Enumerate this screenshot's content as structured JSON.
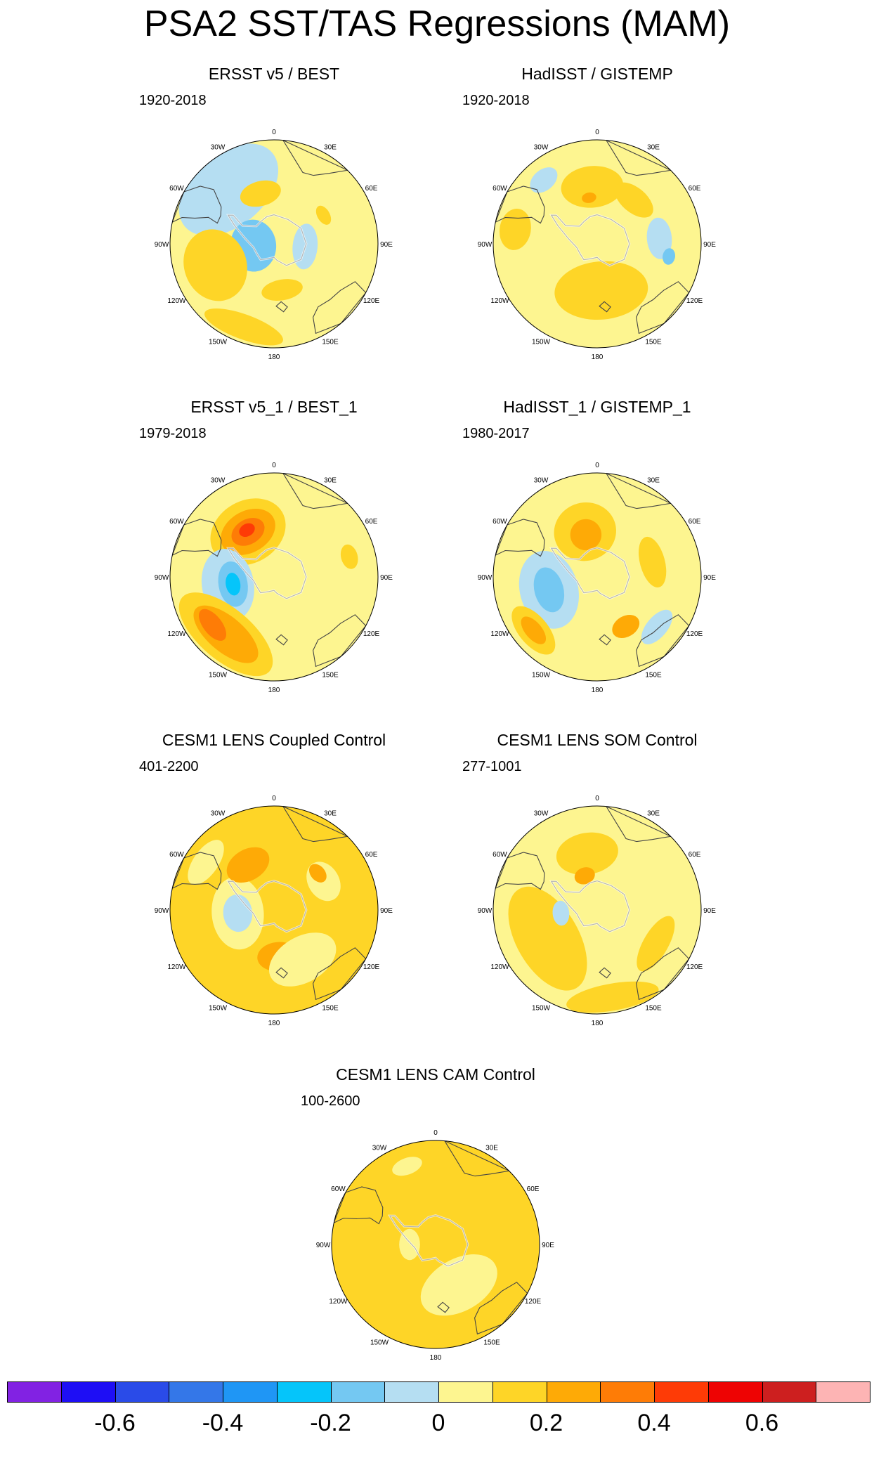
{
  "title": "PSA2 SST/TAS Regressions (MAM)",
  "longitude_labels": [
    "0",
    "30E",
    "60E",
    "90E",
    "120E",
    "150E",
    "180",
    "150W",
    "120W",
    "90W",
    "60W",
    "30W"
  ],
  "panels": [
    {
      "title": "ERSST v5 / BEST",
      "period": "1920-2018",
      "background": 0.0,
      "anomalies": [
        {
          "lon": -40,
          "r": 0.68,
          "rx": 0.55,
          "ry": 0.35,
          "value": -0.1
        },
        {
          "lon": -15,
          "r": 0.5,
          "rx": 0.2,
          "ry": 0.12,
          "value": 0.1
        },
        {
          "lon": -95,
          "r": 0.2,
          "rx": 0.25,
          "ry": 0.22,
          "value": -0.2
        },
        {
          "lon": -110,
          "r": 0.6,
          "rx": 0.35,
          "ry": 0.3,
          "value": 0.1
        },
        {
          "lon": -160,
          "r": 0.85,
          "rx": 0.4,
          "ry": 0.12,
          "value": 0.1
        },
        {
          "lon": 95,
          "r": 0.3,
          "rx": 0.22,
          "ry": 0.12,
          "value": -0.1
        },
        {
          "lon": 170,
          "r": 0.45,
          "rx": 0.2,
          "ry": 0.1,
          "value": 0.1
        },
        {
          "lon": 60,
          "r": 0.55,
          "rx": 0.1,
          "ry": 0.06,
          "value": 0.1
        }
      ]
    },
    {
      "title": "HadISST / GISTEMP",
      "period": "1920-2018",
      "background": 0.0,
      "anomalies": [
        {
          "lon": -5,
          "r": 0.55,
          "rx": 0.3,
          "ry": 0.2,
          "value": 0.1
        },
        {
          "lon": 175,
          "r": 0.45,
          "rx": 0.45,
          "ry": 0.28,
          "value": 0.1
        },
        {
          "lon": -80,
          "r": 0.8,
          "rx": 0.2,
          "ry": 0.15,
          "value": 0.1
        },
        {
          "lon": 85,
          "r": 0.6,
          "rx": 0.2,
          "ry": 0.12,
          "value": -0.1
        },
        {
          "lon": 100,
          "r": 0.7,
          "rx": 0.08,
          "ry": 0.06,
          "value": -0.2
        },
        {
          "lon": 40,
          "r": 0.55,
          "rx": 0.22,
          "ry": 0.12,
          "value": 0.1
        },
        {
          "lon": -40,
          "r": 0.8,
          "rx": 0.15,
          "ry": 0.1,
          "value": -0.1
        },
        {
          "lon": -10,
          "r": 0.45,
          "rx": 0.07,
          "ry": 0.05,
          "value": 0.2
        }
      ]
    },
    {
      "title": "ERSST v5_1 / BEST_1",
      "period": "1979-2018",
      "background": 0.0,
      "anomalies": [
        {
          "lon": -30,
          "r": 0.5,
          "rx": 0.38,
          "ry": 0.3,
          "value": 0.1
        },
        {
          "lon": -30,
          "r": 0.5,
          "rx": 0.28,
          "ry": 0.2,
          "value": 0.2
        },
        {
          "lon": -30,
          "r": 0.5,
          "rx": 0.17,
          "ry": 0.12,
          "value": 0.3
        },
        {
          "lon": -30,
          "r": 0.52,
          "rx": 0.08,
          "ry": 0.06,
          "value": 0.4
        },
        {
          "lon": -100,
          "r": 0.45,
          "rx": 0.35,
          "ry": 0.25,
          "value": -0.1
        },
        {
          "lon": -100,
          "r": 0.4,
          "rx": 0.22,
          "ry": 0.14,
          "value": -0.2
        },
        {
          "lon": -100,
          "r": 0.4,
          "rx": 0.11,
          "ry": 0.07,
          "value": -0.3
        },
        {
          "lon": -140,
          "r": 0.72,
          "rx": 0.55,
          "ry": 0.25,
          "value": 0.1
        },
        {
          "lon": -140,
          "r": 0.72,
          "rx": 0.38,
          "ry": 0.17,
          "value": 0.2
        },
        {
          "lon": -128,
          "r": 0.75,
          "rx": 0.18,
          "ry": 0.09,
          "value": 0.3
        },
        {
          "lon": 75,
          "r": 0.75,
          "rx": 0.12,
          "ry": 0.08,
          "value": 0.1
        }
      ]
    },
    {
      "title": "HadISST_1 / GISTEMP_1",
      "period": "1980-2017",
      "background": 0.0,
      "anomalies": [
        {
          "lon": -15,
          "r": 0.45,
          "rx": 0.3,
          "ry": 0.28,
          "value": 0.1
        },
        {
          "lon": -15,
          "r": 0.42,
          "rx": 0.15,
          "ry": 0.15,
          "value": 0.2
        },
        {
          "lon": -105,
          "r": 0.48,
          "rx": 0.38,
          "ry": 0.28,
          "value": -0.1
        },
        {
          "lon": -105,
          "r": 0.48,
          "rx": 0.22,
          "ry": 0.14,
          "value": -0.2
        },
        {
          "lon": -130,
          "r": 0.8,
          "rx": 0.28,
          "ry": 0.14,
          "value": 0.1
        },
        {
          "lon": -130,
          "r": 0.8,
          "rx": 0.16,
          "ry": 0.08,
          "value": 0.2
        },
        {
          "lon": 75,
          "r": 0.55,
          "rx": 0.25,
          "ry": 0.12,
          "value": 0.1
        },
        {
          "lon": 150,
          "r": 0.55,
          "rx": 0.14,
          "ry": 0.1,
          "value": 0.2
        },
        {
          "lon": 130,
          "r": 0.75,
          "rx": 0.2,
          "ry": 0.1,
          "value": -0.1
        }
      ]
    },
    {
      "title": "CESM1 LENS Coupled Control",
      "period": "401-2200",
      "background": 0.1,
      "anomalies": [
        {
          "lon": -95,
          "r": 0.35,
          "rx": 0.35,
          "ry": 0.25,
          "value": 0.0
        },
        {
          "lon": -95,
          "r": 0.35,
          "rx": 0.18,
          "ry": 0.14,
          "value": -0.1
        },
        {
          "lon": -30,
          "r": 0.5,
          "rx": 0.22,
          "ry": 0.15,
          "value": 0.2
        },
        {
          "lon": 175,
          "r": 0.45,
          "rx": 0.2,
          "ry": 0.14,
          "value": 0.2
        },
        {
          "lon": 150,
          "r": 0.55,
          "rx": 0.35,
          "ry": 0.22,
          "value": 0.0
        },
        {
          "lon": 60,
          "r": 0.55,
          "rx": 0.2,
          "ry": 0.15,
          "value": 0.0
        },
        {
          "lon": 50,
          "r": 0.55,
          "rx": 0.1,
          "ry": 0.07,
          "value": 0.2
        },
        {
          "lon": -55,
          "r": 0.8,
          "rx": 0.25,
          "ry": 0.12,
          "value": 0.0
        }
      ]
    },
    {
      "title": "CESM1 LENS SOM Control",
      "period": "277-1001",
      "background": 0.0,
      "anomalies": [
        {
          "lon": -120,
          "r": 0.55,
          "rx": 0.55,
          "ry": 0.3,
          "value": 0.1
        },
        {
          "lon": -10,
          "r": 0.55,
          "rx": 0.3,
          "ry": 0.2,
          "value": 0.1
        },
        {
          "lon": -20,
          "r": 0.35,
          "rx": 0.1,
          "ry": 0.08,
          "value": 0.2
        },
        {
          "lon": 170,
          "r": 0.85,
          "rx": 0.45,
          "ry": 0.13,
          "value": 0.1
        },
        {
          "lon": -95,
          "r": 0.35,
          "rx": 0.12,
          "ry": 0.08,
          "value": -0.1
        },
        {
          "lon": 120,
          "r": 0.65,
          "rx": 0.3,
          "ry": 0.12,
          "value": 0.1
        }
      ]
    },
    {
      "title": "CESM1 LENS CAM Control",
      "period": "100-2600",
      "background": 0.1,
      "anomalies": [
        {
          "lon": 150,
          "r": 0.45,
          "rx": 0.4,
          "ry": 0.25,
          "value": 0.0
        },
        {
          "lon": -20,
          "r": 0.8,
          "rx": 0.15,
          "ry": 0.08,
          "value": 0.0
        },
        {
          "lon": -90,
          "r": 0.25,
          "rx": 0.15,
          "ry": 0.1,
          "value": 0.0
        }
      ]
    }
  ],
  "colorbar": {
    "colors": [
      "#8222e3",
      "#1e0ef5",
      "#2a4be8",
      "#3477e8",
      "#1f96f5",
      "#05c5fa",
      "#74c8f2",
      "#b5def2",
      "#fdf590",
      "#fed527",
      "#feaa06",
      "#fe7c06",
      "#fe3b06",
      "#ee0303",
      "#cd1f1f",
      "#fdb4b4"
    ],
    "labels": [
      "-0.6",
      "-0.4",
      "-0.2",
      "0",
      "0.2",
      "0.4",
      "0.6"
    ],
    "label_values": [
      -0.6,
      -0.4,
      -0.2,
      0,
      0.2,
      0.4,
      0.6
    ],
    "boundaries": [
      -0.7,
      -0.6,
      -0.5,
      -0.4,
      -0.3,
      -0.2,
      -0.1,
      0,
      0.1,
      0.2,
      0.3,
      0.4,
      0.5,
      0.6,
      0.7
    ]
  }
}
